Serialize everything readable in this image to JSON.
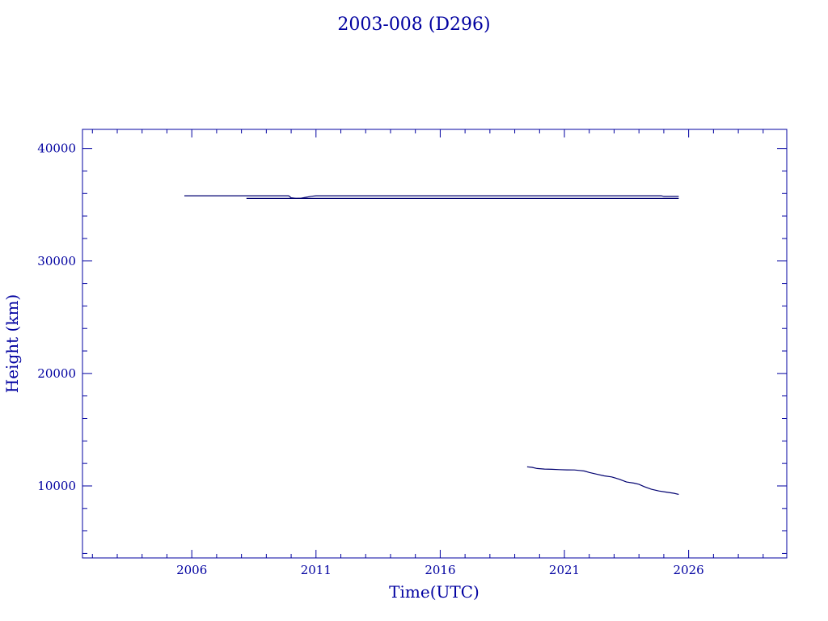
{
  "chart_data": {
    "type": "line",
    "title": "2003-008 (D296)",
    "xlabel": "Time(UTC)",
    "ylabel": "Height (km)",
    "xlim": [
      2001.6,
      2029.95
    ],
    "ylim": [
      3600,
      41700
    ],
    "x_ticks": [
      2006,
      2011,
      2016,
      2021,
      2026
    ],
    "x_tick_labels": [
      "2006",
      "2011",
      "2016",
      "2021",
      "2026"
    ],
    "y_ticks": [
      10000,
      20000,
      30000,
      40000
    ],
    "y_tick_labels": [
      "10000",
      "20000",
      "30000",
      "40000"
    ],
    "grid": false,
    "colors": {
      "axes": "#0000a0",
      "series": "#000070"
    },
    "series": [
      {
        "x": [
          2005.7,
          2007.0,
          2008.0,
          2009.0,
          2009.9,
          2010.0,
          2010.2,
          2010.4,
          2010.6,
          2010.8,
          2011.0,
          2012.0,
          2014.0,
          2016.0,
          2018.0,
          2020.0,
          2022.0,
          2024.0,
          2024.9,
          2025.0,
          2025.6
        ],
        "values": [
          35800,
          35800,
          35800,
          35800,
          35800,
          35620,
          35560,
          35580,
          35660,
          35750,
          35800,
          35800,
          35800,
          35800,
          35800,
          35800,
          35800,
          35800,
          35800,
          35740,
          35740
        ]
      },
      {
        "x": [
          2008.2,
          2010.0,
          2012.0,
          2014.0,
          2016.0,
          2018.0,
          2020.0,
          2022.0,
          2024.0,
          2025.6
        ],
        "values": [
          35560,
          35560,
          35560,
          35560,
          35560,
          35560,
          35560,
          35560,
          35560,
          35560
        ]
      },
      {
        "x": [
          2019.5,
          2019.7,
          2019.9,
          2020.2,
          2020.5,
          2020.8,
          2021.1,
          2021.4,
          2021.6,
          2021.8,
          2022.0,
          2022.3,
          2022.6,
          2022.9,
          2023.2,
          2023.5,
          2023.8,
          2024.0,
          2024.2,
          2024.5,
          2024.8,
          2025.1,
          2025.4,
          2025.6
        ],
        "values": [
          11700,
          11650,
          11550,
          11500,
          11480,
          11450,
          11430,
          11420,
          11380,
          11330,
          11200,
          11050,
          10900,
          10800,
          10600,
          10350,
          10250,
          10150,
          9950,
          9700,
          9550,
          9450,
          9350,
          9250
        ]
      }
    ]
  }
}
